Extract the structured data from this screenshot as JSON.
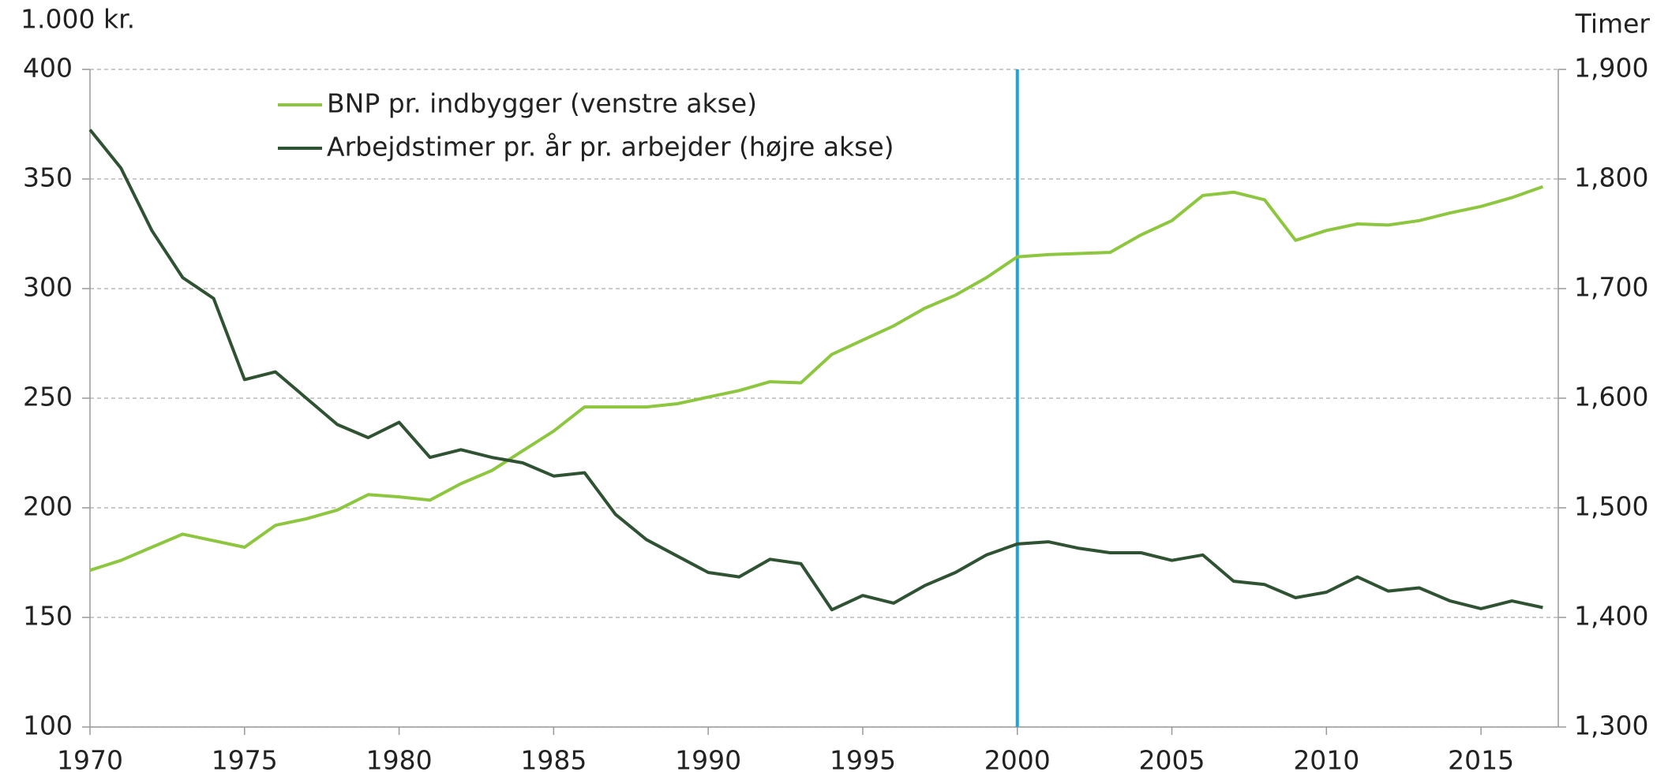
{
  "chart_data": {
    "type": "line",
    "y_label": "1.000 kr.",
    "y2_label": "Timer",
    "x": [
      1970,
      1971,
      1972,
      1973,
      1974,
      1975,
      1976,
      1977,
      1978,
      1979,
      1980,
      1981,
      1982,
      1983,
      1984,
      1985,
      1986,
      1987,
      1988,
      1989,
      1990,
      1991,
      1992,
      1993,
      1994,
      1995,
      1996,
      1997,
      1998,
      1999,
      2000,
      2001,
      2002,
      2003,
      2004,
      2005,
      2006,
      2007,
      2008,
      2009,
      2010,
      2011,
      2012,
      2013,
      2014,
      2015,
      2016,
      2017
    ],
    "xlim": [
      1970,
      2017.5
    ],
    "xticks": [
      1970,
      1975,
      1980,
      1985,
      1990,
      1995,
      2000,
      2005,
      2010,
      2015
    ],
    "ylim": [
      100,
      400
    ],
    "yticks": [
      100,
      150,
      200,
      250,
      300,
      350,
      400
    ],
    "y2lim": [
      1300,
      1900
    ],
    "y2ticks": [
      {
        "value": 1300,
        "label": "1,300"
      },
      {
        "value": 1400,
        "label": "1,400"
      },
      {
        "value": 1500,
        "label": "1,500"
      },
      {
        "value": 1600,
        "label": "1,600"
      },
      {
        "value": 1700,
        "label": "1,700"
      },
      {
        "value": 1800,
        "label": "1,800"
      },
      {
        "value": 1900,
        "label": "1,900"
      }
    ],
    "grid": true,
    "legend": "top-left",
    "vline": {
      "value": 2000,
      "color": "#1ea5d6"
    },
    "series": [
      {
        "name": "BNP pr. indbygger (venstre akse)",
        "color": "#8dc63f",
        "values": [
          171.5,
          176,
          182,
          188,
          185,
          182,
          192,
          195,
          199,
          206,
          205,
          203.5,
          211,
          217,
          226,
          235,
          246,
          246,
          246,
          247.5,
          250.5,
          253.5,
          257.5,
          257,
          270,
          276.5,
          283,
          291,
          297,
          305,
          314.5,
          315.5,
          316,
          316.5,
          324.5,
          331,
          342.5,
          344,
          340.5,
          322,
          326.5,
          329.5,
          329,
          331,
          334.5,
          337.5,
          341.5,
          346.5
        ]
      },
      {
        "name": "Arbejdstimer pr. år pr. arbejder (højre akse)",
        "color": "#2f5233",
        "axis": "y2",
        "values": [
          1845,
          1810,
          1753,
          1710,
          1691,
          1617,
          1624,
          1600,
          1576,
          1564,
          1578,
          1546,
          1553,
          1546,
          1541,
          1529,
          1532,
          1494,
          1471,
          1456,
          1441,
          1437,
          1453,
          1449,
          1407,
          1420,
          1413,
          1429,
          1441,
          1457,
          1467,
          1469,
          1463,
          1459,
          1459,
          1452,
          1457,
          1433,
          1430,
          1418,
          1423,
          1437,
          1424,
          1427,
          1415,
          1408,
          1415,
          1409
        ]
      }
    ]
  }
}
